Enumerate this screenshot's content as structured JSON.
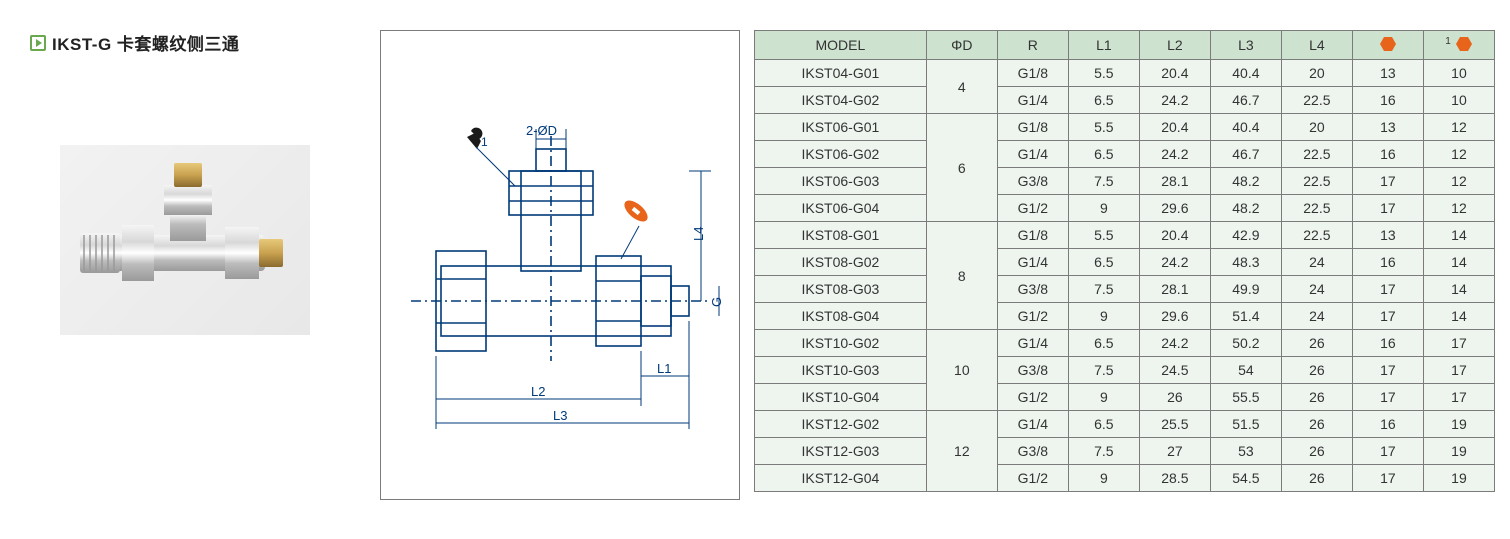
{
  "title": "IKST-G 卡套螺纹侧三通",
  "diagram_labels": {
    "top_dim": "2-ØD",
    "L1": "L1",
    "L2": "L2",
    "L3": "L3",
    "L4": "L4",
    "G": "G"
  },
  "colors": {
    "header_bg": "#cde3d0",
    "cell_bg": "#eef5ef",
    "border": "#7b7b7b",
    "accent": "#6aa84f",
    "diagram_stroke": "#003a7a",
    "wrench_orange": "#e8641b"
  },
  "table": {
    "columns": [
      "MODEL",
      "ΦD",
      "R",
      "L1",
      "L2",
      "L3",
      "L4",
      "hex1",
      "hex2"
    ],
    "header_labels": {
      "MODEL": "MODEL",
      "PhiD": "ΦD",
      "R": "R",
      "L1": "L1",
      "L2": "L2",
      "L3": "L3",
      "L4": "L4"
    },
    "groups": [
      {
        "phiD": "4",
        "rows": [
          {
            "model": "IKST04-G01",
            "R": "G1/8",
            "L1": "5.5",
            "L2": "20.4",
            "L3": "40.4",
            "L4": "20",
            "h1": "13",
            "h2": "10"
          },
          {
            "model": "IKST04-G02",
            "R": "G1/4",
            "L1": "6.5",
            "L2": "24.2",
            "L3": "46.7",
            "L4": "22.5",
            "h1": "16",
            "h2": "10"
          }
        ]
      },
      {
        "phiD": "6",
        "rows": [
          {
            "model": "IKST06-G01",
            "R": "G1/8",
            "L1": "5.5",
            "L2": "20.4",
            "L3": "40.4",
            "L4": "20",
            "h1": "13",
            "h2": "12"
          },
          {
            "model": "IKST06-G02",
            "R": "G1/4",
            "L1": "6.5",
            "L2": "24.2",
            "L3": "46.7",
            "L4": "22.5",
            "h1": "16",
            "h2": "12"
          },
          {
            "model": "IKST06-G03",
            "R": "G3/8",
            "L1": "7.5",
            "L2": "28.1",
            "L3": "48.2",
            "L4": "22.5",
            "h1": "17",
            "h2": "12"
          },
          {
            "model": "IKST06-G04",
            "R": "G1/2",
            "L1": "9",
            "L2": "29.6",
            "L3": "48.2",
            "L4": "22.5",
            "h1": "17",
            "h2": "12"
          }
        ]
      },
      {
        "phiD": "8",
        "rows": [
          {
            "model": "IKST08-G01",
            "R": "G1/8",
            "L1": "5.5",
            "L2": "20.4",
            "L3": "42.9",
            "L4": "22.5",
            "h1": "13",
            "h2": "14"
          },
          {
            "model": "IKST08-G02",
            "R": "G1/4",
            "L1": "6.5",
            "L2": "24.2",
            "L3": "48.3",
            "L4": "24",
            "h1": "16",
            "h2": "14"
          },
          {
            "model": "IKST08-G03",
            "R": "G3/8",
            "L1": "7.5",
            "L2": "28.1",
            "L3": "49.9",
            "L4": "24",
            "h1": "17",
            "h2": "14"
          },
          {
            "model": "IKST08-G04",
            "R": "G1/2",
            "L1": "9",
            "L2": "29.6",
            "L3": "51.4",
            "L4": "24",
            "h1": "17",
            "h2": "14"
          }
        ]
      },
      {
        "phiD": "10",
        "rows": [
          {
            "model": "IKST10-G02",
            "R": "G1/4",
            "L1": "6.5",
            "L2": "24.2",
            "L3": "50.2",
            "L4": "26",
            "h1": "16",
            "h2": "17"
          },
          {
            "model": "IKST10-G03",
            "R": "G3/8",
            "L1": "7.5",
            "L2": "24.5",
            "L3": "54",
            "L4": "26",
            "h1": "17",
            "h2": "17"
          },
          {
            "model": "IKST10-G04",
            "R": "G1/2",
            "L1": "9",
            "L2": "26",
            "L3": "55.5",
            "L4": "26",
            "h1": "17",
            "h2": "17"
          }
        ]
      },
      {
        "phiD": "12",
        "rows": [
          {
            "model": "IKST12-G02",
            "R": "G1/4",
            "L1": "6.5",
            "L2": "25.5",
            "L3": "51.5",
            "L4": "26",
            "h1": "16",
            "h2": "19"
          },
          {
            "model": "IKST12-G03",
            "R": "G3/8",
            "L1": "7.5",
            "L2": "27",
            "L3": "53",
            "L4": "26",
            "h1": "17",
            "h2": "19"
          },
          {
            "model": "IKST12-G04",
            "R": "G1/2",
            "L1": "9",
            "L2": "28.5",
            "L3": "54.5",
            "L4": "26",
            "h1": "17",
            "h2": "19"
          }
        ]
      }
    ]
  }
}
